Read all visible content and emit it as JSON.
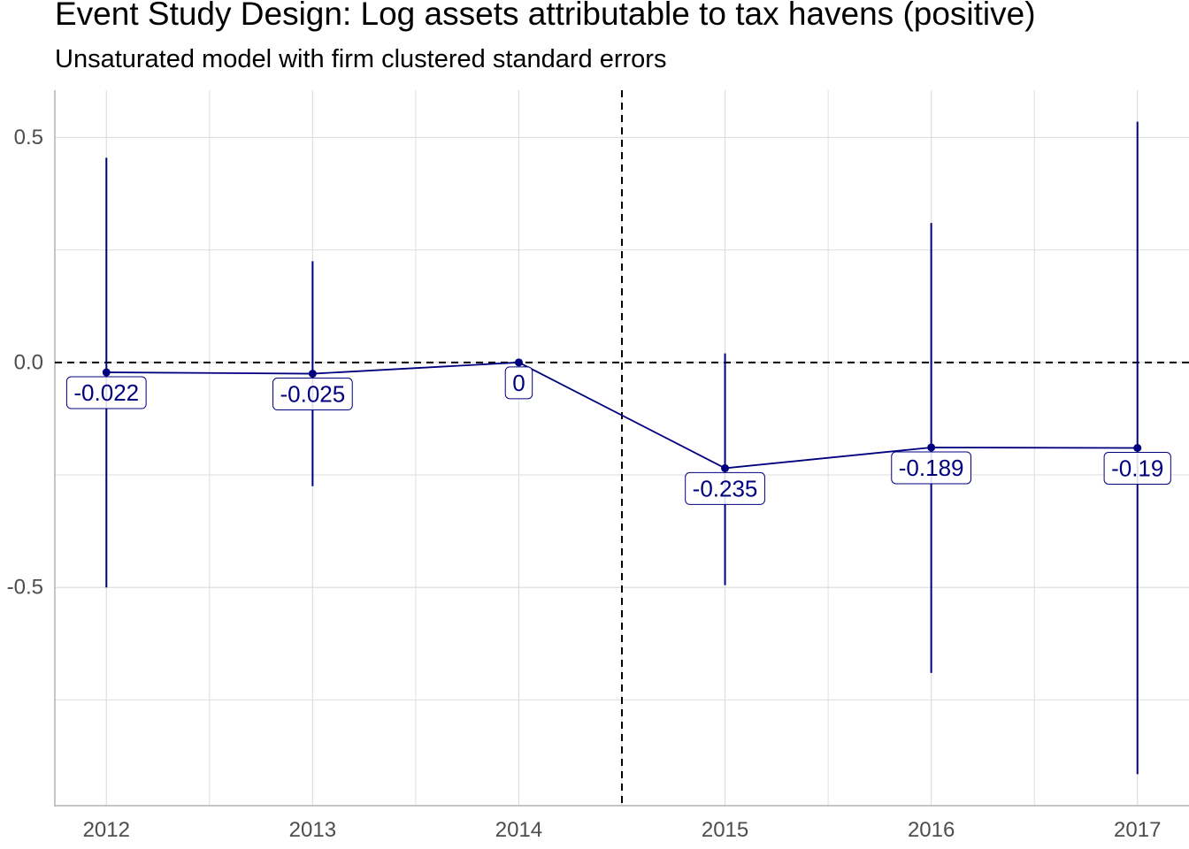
{
  "title": "Event Study Design: Log assets attributable to tax havens (positive)",
  "subtitle": "Unsaturated model with firm clustered standard errors",
  "colors": {
    "series": "#00007f",
    "grid": "#dedede",
    "axis": "#b3b3b3",
    "tick": "#4d4d4d",
    "ref": "#000000"
  },
  "chart_data": {
    "type": "line",
    "title": "Event Study Design: Log assets attributable to tax havens (positive)",
    "subtitle": "Unsaturated model with firm clustered standard errors",
    "xlabel": "",
    "ylabel": "",
    "x": [
      2012,
      2013,
      2014,
      2015,
      2016,
      2017
    ],
    "x_tick_labels": [
      "2012",
      "2013",
      "2014",
      "2015",
      "2016",
      "2017"
    ],
    "y_ticks": [
      0.5,
      0.0,
      -0.5
    ],
    "y_tick_labels": [
      "0.5",
      "0.0",
      "-0.5"
    ],
    "xlim": [
      2011.75,
      2017.25
    ],
    "ylim": [
      -0.985,
      0.605
    ],
    "grid": true,
    "series": [
      {
        "values": [
          -0.022,
          -0.025,
          0,
          -0.235,
          -0.189,
          -0.19
        ],
        "ci_low": [
          -0.5,
          -0.275,
          0,
          -0.495,
          -0.69,
          -0.915
        ],
        "ci_high": [
          0.455,
          0.225,
          0,
          0.02,
          0.31,
          0.535
        ],
        "labels": [
          "-0.022",
          "-0.025",
          "0",
          "-0.235",
          "-0.189",
          "-0.19"
        ]
      }
    ],
    "reference_lines": {
      "horizontal_y": 0,
      "vertical_x": 2014.5
    }
  }
}
